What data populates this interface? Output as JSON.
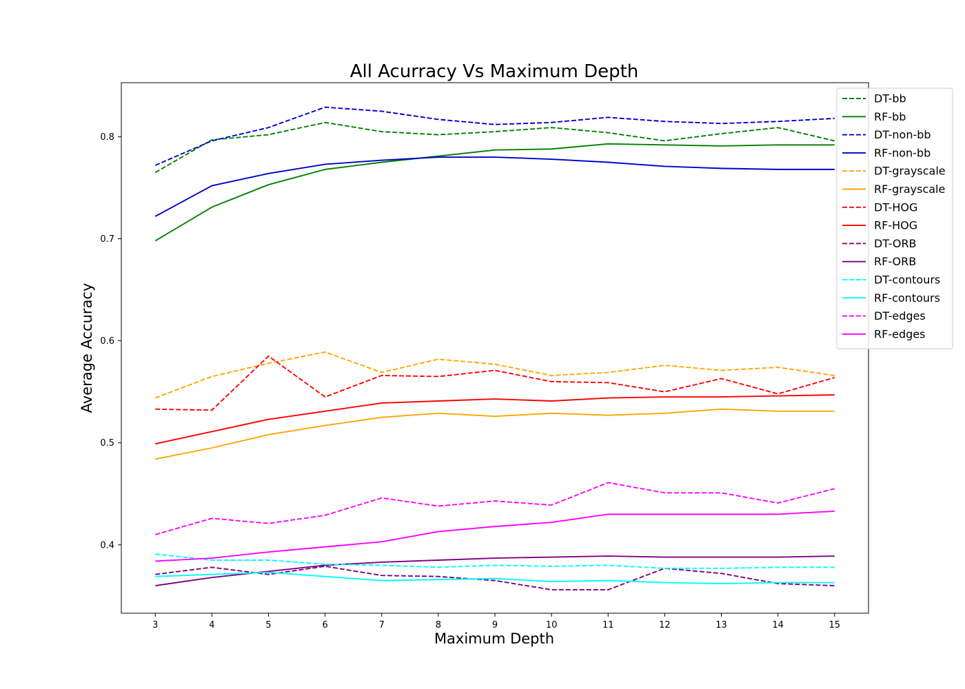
{
  "chart_data": {
    "type": "line",
    "title": "All Acurracy Vs Maximum Depth",
    "xlabel": "Maximum Depth",
    "ylabel": "Average Accuracy",
    "x": [
      3,
      4,
      5,
      6,
      7,
      8,
      9,
      10,
      11,
      12,
      13,
      14,
      15
    ],
    "xlim": [
      2.4,
      15.6
    ],
    "ylim": [
      0.333,
      0.853
    ],
    "yticks": [
      0.4,
      0.5,
      0.6,
      0.7,
      0.8
    ],
    "ytick_labels": [
      "0.4",
      "0.5",
      "0.6",
      "0.7",
      "0.8"
    ],
    "xtick_labels": [
      "3",
      "4",
      "5",
      "6",
      "7",
      "8",
      "9",
      "10",
      "11",
      "12",
      "13",
      "14",
      "15"
    ],
    "grid": false,
    "legend_position": "top-right",
    "series": [
      {
        "name": "DT-bb",
        "color": "#008000",
        "style": "dashed",
        "values": [
          0.765,
          0.797,
          0.802,
          0.814,
          0.805,
          0.802,
          0.805,
          0.809,
          0.804,
          0.796,
          0.803,
          0.809,
          0.796
        ]
      },
      {
        "name": "RF-bb",
        "color": "#008000",
        "style": "solid",
        "values": [
          0.698,
          0.731,
          0.753,
          0.768,
          0.775,
          0.781,
          0.787,
          0.788,
          0.793,
          0.792,
          0.791,
          0.792,
          0.792
        ]
      },
      {
        "name": "DT-non-bb",
        "color": "#0000cd",
        "style": "dashed",
        "values": [
          0.772,
          0.796,
          0.809,
          0.829,
          0.825,
          0.817,
          0.812,
          0.814,
          0.819,
          0.815,
          0.813,
          0.815,
          0.818
        ]
      },
      {
        "name": "RF-non-bb",
        "color": "#0000cd",
        "style": "solid",
        "values": [
          0.722,
          0.752,
          0.764,
          0.773,
          0.777,
          0.78,
          0.78,
          0.778,
          0.775,
          0.771,
          0.769,
          0.768,
          0.768
        ]
      },
      {
        "name": "DT-grayscale",
        "color": "#ffa500",
        "style": "dashed",
        "values": [
          0.544,
          0.565,
          0.578,
          0.589,
          0.569,
          0.582,
          0.577,
          0.566,
          0.569,
          0.576,
          0.571,
          0.574,
          0.566
        ]
      },
      {
        "name": "RF-grayscale",
        "color": "#ffa500",
        "style": "solid",
        "values": [
          0.484,
          0.495,
          0.508,
          0.517,
          0.525,
          0.529,
          0.526,
          0.529,
          0.527,
          0.529,
          0.533,
          0.531,
          0.531
        ]
      },
      {
        "name": "DT-HOG",
        "color": "#ff0000",
        "style": "dashed",
        "values": [
          0.533,
          0.532,
          0.585,
          0.545,
          0.566,
          0.565,
          0.571,
          0.56,
          0.559,
          0.55,
          0.563,
          0.548,
          0.564
        ]
      },
      {
        "name": "RF-HOG",
        "color": "#ff0000",
        "style": "solid",
        "values": [
          0.499,
          0.511,
          0.523,
          0.531,
          0.539,
          0.541,
          0.543,
          0.541,
          0.544,
          0.545,
          0.545,
          0.546,
          0.547
        ]
      },
      {
        "name": "DT-ORB",
        "color": "#800080",
        "style": "dashed",
        "values": [
          0.371,
          0.378,
          0.371,
          0.379,
          0.37,
          0.369,
          0.365,
          0.356,
          0.356,
          0.377,
          0.372,
          0.362,
          0.36
        ]
      },
      {
        "name": "RF-ORB",
        "color": "#800080",
        "style": "solid",
        "values": [
          0.36,
          0.368,
          0.374,
          0.38,
          0.383,
          0.385,
          0.387,
          0.388,
          0.389,
          0.388,
          0.388,
          0.388,
          0.389
        ]
      },
      {
        "name": "DT-contours",
        "color": "#00ffff",
        "style": "dashed",
        "values": [
          0.391,
          0.385,
          0.385,
          0.381,
          0.38,
          0.378,
          0.38,
          0.379,
          0.38,
          0.377,
          0.377,
          0.378,
          0.378
        ]
      },
      {
        "name": "RF-contours",
        "color": "#00ffff",
        "style": "solid",
        "values": [
          0.369,
          0.371,
          0.373,
          0.369,
          0.365,
          0.366,
          0.367,
          0.364,
          0.365,
          0.363,
          0.362,
          0.363,
          0.363
        ]
      },
      {
        "name": "DT-edges",
        "color": "#ff00ff",
        "style": "dashed",
        "values": [
          0.41,
          0.426,
          0.421,
          0.429,
          0.446,
          0.438,
          0.443,
          0.439,
          0.461,
          0.451,
          0.451,
          0.441,
          0.455
        ]
      },
      {
        "name": "RF-edges",
        "color": "#ff00ff",
        "style": "solid",
        "values": [
          0.384,
          0.387,
          0.393,
          0.398,
          0.403,
          0.413,
          0.418,
          0.422,
          0.43,
          0.43,
          0.43,
          0.43,
          0.433
        ]
      }
    ]
  }
}
